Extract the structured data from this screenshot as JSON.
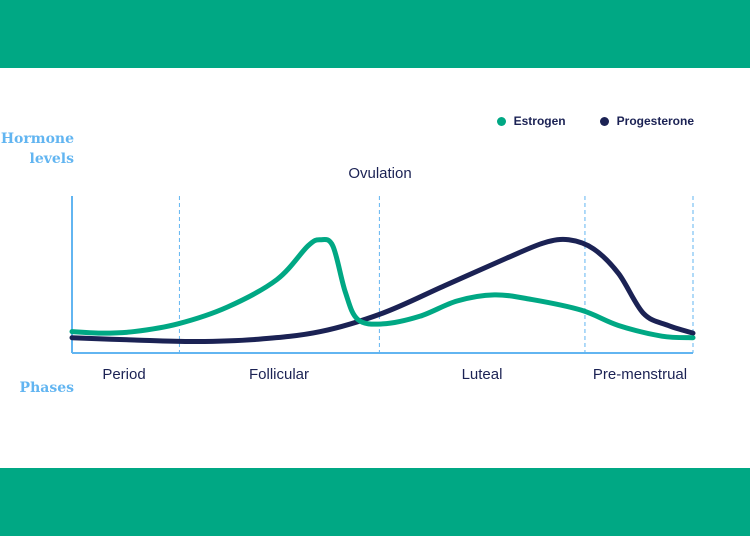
{
  "chart_data": {
    "type": "line",
    "title": "",
    "ylabel": "Hormone levels",
    "xlabel": "Phases",
    "annotation": "Ovulation",
    "phases": [
      "Period",
      "Follicular",
      "Luteal",
      "Pre-menstrual"
    ],
    "legend_position": "top-right",
    "grid": false,
    "colors": {
      "estrogen": "#00a884",
      "progesterone": "#1b2254",
      "axis": "#62b5f1"
    },
    "series": [
      {
        "name": "Estrogen",
        "values": [
          [
            0,
            0.14
          ],
          [
            5,
            0.13
          ],
          [
            10,
            0.14
          ],
          [
            17,
            0.19
          ],
          [
            25,
            0.3
          ],
          [
            33,
            0.48
          ],
          [
            38,
            0.7
          ],
          [
            40,
            0.74
          ],
          [
            42,
            0.7
          ],
          [
            44,
            0.4
          ],
          [
            46,
            0.22
          ],
          [
            50,
            0.19
          ],
          [
            56,
            0.24
          ],
          [
            62,
            0.34
          ],
          [
            68,
            0.38
          ],
          [
            74,
            0.35
          ],
          [
            82,
            0.28
          ],
          [
            88,
            0.18
          ],
          [
            95,
            0.11
          ],
          [
            100,
            0.1
          ]
        ]
      },
      {
        "name": "Progesterone",
        "values": [
          [
            0,
            0.1
          ],
          [
            10,
            0.085
          ],
          [
            20,
            0.075
          ],
          [
            30,
            0.09
          ],
          [
            40,
            0.14
          ],
          [
            50,
            0.26
          ],
          [
            60,
            0.44
          ],
          [
            70,
            0.62
          ],
          [
            76,
            0.72
          ],
          [
            80,
            0.74
          ],
          [
            84,
            0.68
          ],
          [
            88,
            0.52
          ],
          [
            92,
            0.26
          ],
          [
            96,
            0.18
          ],
          [
            100,
            0.13
          ]
        ]
      }
    ],
    "phase_boundaries": [
      0,
      17.3,
      49.5,
      82.6,
      100
    ]
  }
}
